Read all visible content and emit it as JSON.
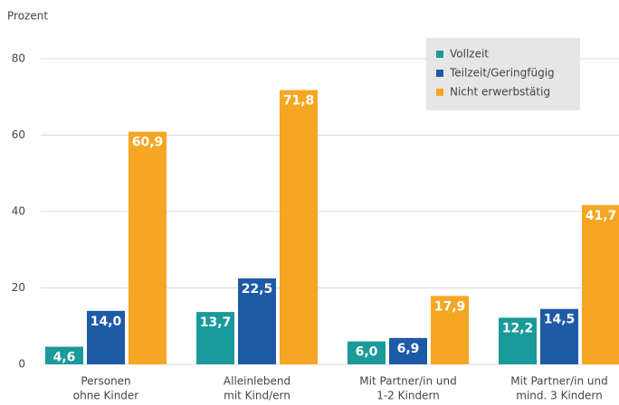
{
  "chart_data": {
    "type": "bar",
    "y_label": "Prozent",
    "categories": [
      [
        "Personen",
        "ohne Kinder"
      ],
      [
        "Alleinlebend",
        "mit Kind/ern"
      ],
      [
        "Mit Partner/in und",
        "1-2 Kindern"
      ],
      [
        "Mit Partner/in und",
        "mind. 3 Kindern"
      ]
    ],
    "series": [
      {
        "name": "Vollzeit",
        "color": "#1a9a9a",
        "values": [
          4.6,
          13.7,
          6.0,
          12.2
        ],
        "value_labels": [
          "4,6",
          "13,7",
          "6,0",
          "12,2"
        ]
      },
      {
        "name": "Teilzeit/Geringfügig",
        "color": "#1f5aa6",
        "values": [
          14.0,
          22.5,
          6.9,
          14.5
        ],
        "value_labels": [
          "14,0",
          "22,5",
          "6,9",
          "14,5"
        ]
      },
      {
        "name": "Nicht erwerbstätig",
        "color": "#f5a623",
        "values": [
          60.9,
          71.8,
          17.9,
          41.7
        ],
        "value_labels": [
          "60,9",
          "71,8",
          "17,9",
          "41,7"
        ]
      }
    ],
    "ylim": [
      0,
      80
    ],
    "yticks": [
      0,
      20,
      40,
      60,
      80
    ],
    "grid": true,
    "legend": "top-right"
  }
}
